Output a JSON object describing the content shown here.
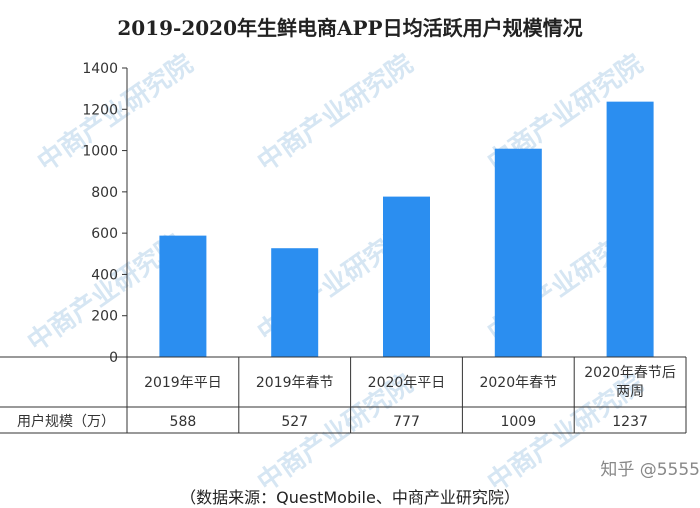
{
  "chart_data": {
    "type": "bar",
    "title": "2019-2020年生鲜电商APP日均活跃用户规模情况",
    "categories": [
      "2019年平日",
      "2019年春节",
      "2020年平日",
      "2020年春节",
      "2020年春节后两周"
    ],
    "category_lines": [
      [
        "2019年平日"
      ],
      [
        "2019年春节"
      ],
      [
        "2020年平日"
      ],
      [
        "2020年春节"
      ],
      [
        "2020年春节后",
        "两周"
      ]
    ],
    "series": [
      {
        "name": "用户规模（万）",
        "values": [
          588,
          527,
          777,
          1009,
          1237
        ],
        "color": "#2b8ef0"
      }
    ],
    "ylim": [
      0,
      1400
    ],
    "yticks": [
      0,
      200,
      400,
      600,
      800,
      1000,
      1200,
      1400
    ],
    "grid": false,
    "table_row_label": "用户规模（万）"
  },
  "watermark": {
    "text": "中商产业研究院",
    "site": "知乎 @5555"
  },
  "source_note": "（数据来源：QuestMobile、中商产业研究院）"
}
